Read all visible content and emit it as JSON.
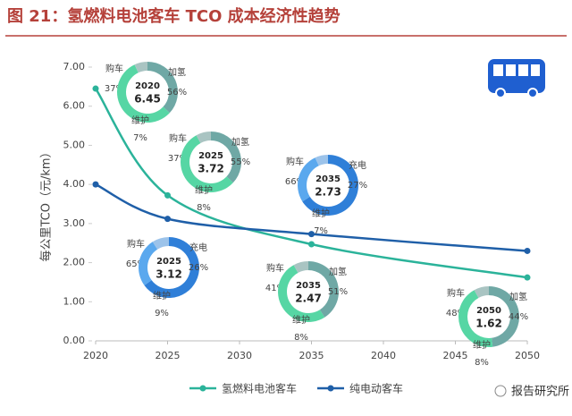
{
  "chart_data": {
    "type": "line",
    "title": "图 21：氢燃料电池客车 TCO 成本经济性趋势",
    "y_label": "每公里TCO（元/km）",
    "xlim": [
      2020,
      2050
    ],
    "xticks": [
      2020,
      2025,
      2030,
      2035,
      2040,
      2045,
      2050
    ],
    "ylim": [
      0,
      7
    ],
    "yticks": [
      {
        "value": 0,
        "label": "0.00"
      },
      {
        "value": 1,
        "label": "1.00"
      },
      {
        "value": 2,
        "label": "2.00"
      },
      {
        "value": 3,
        "label": "3.00"
      },
      {
        "value": 4,
        "label": "4.00"
      },
      {
        "value": 5,
        "label": "5.00"
      },
      {
        "value": 6,
        "label": "6.00"
      },
      {
        "value": 7,
        "label": "7.00"
      }
    ],
    "series": [
      {
        "name": "氢燃料电池客车",
        "color": "#2bb39a",
        "x": [
          2020,
          2025,
          2035,
          2050
        ],
        "values": [
          6.45,
          3.72,
          2.47,
          1.62
        ]
      },
      {
        "name": "纯电动客车",
        "color": "#1f5fa8",
        "x": [
          2020,
          2025,
          2035,
          2050
        ],
        "values": [
          4.0,
          3.12,
          2.73,
          2.3
        ]
      }
    ],
    "donuts": [
      {
        "year": "2020",
        "value": 6.45,
        "segments": [
          "购车",
          "加氢",
          "维护"
        ],
        "values": [
          37,
          56,
          7
        ],
        "value_labels": [
          "37%",
          "56%",
          "7%"
        ],
        "colors": [
          "#6fa8a5",
          "#56d6a4",
          "#a9c4c2"
        ]
      },
      {
        "year": "2025",
        "value": 3.72,
        "segments": [
          "购车",
          "加氢",
          "维护"
        ],
        "values": [
          37,
          55,
          8
        ],
        "value_labels": [
          "37%",
          "55%",
          "8%"
        ],
        "colors": [
          "#6fa8a5",
          "#56d6a4",
          "#a9c4c2"
        ]
      },
      {
        "year": "2035",
        "value": 2.73,
        "segments": [
          "购车",
          "充电",
          "维护"
        ],
        "values": [
          66,
          27,
          7
        ],
        "value_labels": [
          "66%",
          "27%",
          "7%"
        ],
        "colors": [
          "#2f7fd8",
          "#5aa8ee",
          "#9cc3ea"
        ]
      },
      {
        "year": "2025",
        "value": 3.12,
        "segments": [
          "购车",
          "充电",
          "维护"
        ],
        "values": [
          65,
          26,
          9
        ],
        "value_labels": [
          "65%",
          "26%",
          "9%"
        ],
        "colors": [
          "#2f7fd8",
          "#5aa8ee",
          "#9cc3ea"
        ]
      },
      {
        "year": "2035",
        "value": 2.47,
        "segments": [
          "购车",
          "加氢",
          "维护"
        ],
        "values": [
          41,
          51,
          8
        ],
        "value_labels": [
          "41%",
          "51%",
          "8%"
        ],
        "colors": [
          "#6fa8a5",
          "#56d6a4",
          "#a9c4c2"
        ]
      },
      {
        "year": "2050",
        "value": 1.62,
        "segments": [
          "购车",
          "加氢",
          "维护"
        ],
        "values": [
          48,
          44,
          8
        ],
        "value_labels": [
          "48%",
          "44%",
          "8%"
        ],
        "colors": [
          "#6fa8a5",
          "#56d6a4",
          "#a9c4c2"
        ]
      }
    ],
    "legend": "bottom",
    "watermark": "报告研究所"
  }
}
